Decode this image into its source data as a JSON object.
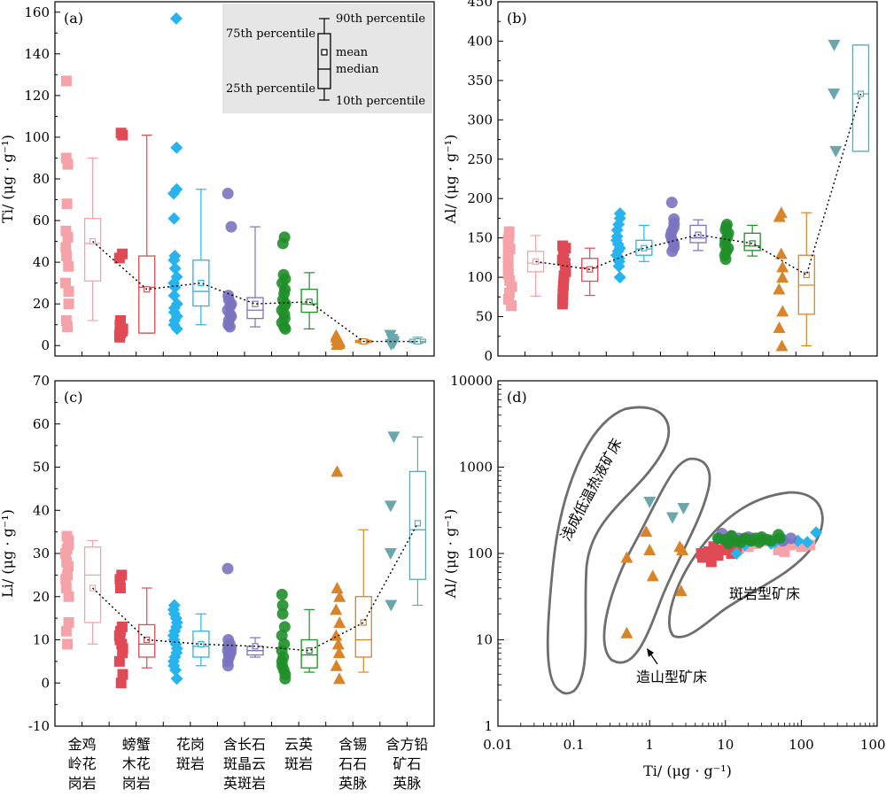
{
  "colors": {
    "jinji": "#f5a3a8",
    "pangxie": "#e04a55",
    "huagang": "#27b4ee",
    "hanchang": "#7a73c0",
    "yunying": "#1f8f28",
    "hanxi": "#d98428",
    "hanfang": "#6aa7ad",
    "legend_bg": "#e6e6e6",
    "field_line": "#6e6e6e"
  },
  "categories": [
    {
      "lines": [
        "金鸡",
        "岭花",
        "岗岩"
      ]
    },
    {
      "lines": [
        "螃蟹",
        "木花",
        "岗岩"
      ]
    },
    {
      "lines": [
        "花岗",
        "斑岩"
      ]
    },
    {
      "lines": [
        "含长石",
        "斑晶云",
        "英斑岩"
      ]
    },
    {
      "lines": [
        "云英",
        "斑岩"
      ]
    },
    {
      "lines": [
        "含锡",
        "石石",
        "英脉"
      ]
    },
    {
      "lines": [
        "含方铅",
        "矿石",
        "英脉"
      ]
    }
  ],
  "legend": {
    "p90": "90th percentile",
    "p75": "75th percentile",
    "mean": "mean",
    "median": "median",
    "p25": "25th percentile",
    "p10": "10th percentile"
  },
  "panels": {
    "a": {
      "label": "(a)",
      "ylabel": "Ti/ (μg · g⁻¹)"
    },
    "b": {
      "label": "(b)",
      "ylabel": "Al/ (μg · g⁻¹)"
    },
    "c": {
      "label": "(c)",
      "ylabel": "Li/ (μg · g⁻¹)"
    },
    "d": {
      "label": "(d)",
      "ylabel": "Al/ (μg · g⁻¹)",
      "xlabel": "Ti/ (μg · g⁻¹)",
      "field_epithermal": "浅成低温热液矿床",
      "field_orogenic": "造山型矿床",
      "field_porphyry": "斑岩型矿床"
    }
  },
  "chart_data": [
    {
      "panel": "a",
      "type": "box",
      "ylabel": "Ti/ (μg · g⁻¹)",
      "ylim": [
        -5,
        165
      ],
      "yticks": [
        0,
        20,
        40,
        60,
        80,
        100,
        120,
        140,
        160
      ],
      "series": [
        {
          "p10": 12,
          "p25": 31,
          "median": 49,
          "mean": 50,
          "p75": 61,
          "p90": 90,
          "points": [
            127,
            90,
            87,
            68,
            55,
            52,
            47,
            43,
            38,
            30,
            26,
            20,
            12,
            9
          ]
        },
        {
          "p10": 6,
          "p25": 6,
          "median": 28,
          "mean": 27,
          "p75": 43,
          "p90": 101,
          "points": [
            102,
            101,
            44,
            42,
            12,
            10,
            8,
            7,
            6,
            5,
            4
          ]
        },
        {
          "p10": 10,
          "p25": 19,
          "median": 26,
          "mean": 30,
          "p75": 41,
          "p90": 75,
          "points": [
            157,
            95,
            75,
            73,
            61,
            43,
            41,
            37,
            33,
            30,
            28,
            24,
            20,
            18,
            16,
            14,
            12,
            10,
            8
          ]
        },
        {
          "p10": 9,
          "p25": 13,
          "median": 17,
          "mean": 20,
          "p75": 23,
          "p90": 57,
          "points": [
            73,
            57,
            24,
            22,
            20,
            19,
            17,
            15,
            14,
            12,
            10,
            9
          ]
        },
        {
          "p10": 8,
          "p25": 16,
          "median": 20,
          "mean": 21,
          "p75": 27,
          "p90": 35,
          "points": [
            52,
            49,
            34,
            32,
            30,
            27,
            25,
            22,
            20,
            19,
            17,
            15,
            13,
            11,
            9,
            8
          ]
        },
        {
          "p10": 1,
          "p25": 1.5,
          "median": 2,
          "mean": 2,
          "p75": 2.5,
          "p90": 3,
          "points": [
            5,
            4,
            3,
            2.5,
            2,
            1,
            0.5
          ]
        },
        {
          "p10": 1,
          "p25": 1.5,
          "median": 2,
          "mean": 2,
          "p75": 3,
          "p90": 4,
          "points": [
            5,
            3,
            2,
            1,
            0.5
          ]
        }
      ]
    },
    {
      "panel": "b",
      "type": "box",
      "ylabel": "Al/ (μg · g⁻¹)",
      "ylim": [
        0,
        450
      ],
      "yticks": [
        0,
        50,
        100,
        150,
        200,
        250,
        300,
        350,
        400,
        450
      ],
      "series": [
        {
          "p10": 76,
          "p25": 107,
          "median": 118,
          "mean": 120,
          "p75": 133,
          "p90": 153,
          "points": [
            158,
            152,
            147,
            141,
            136,
            128,
            122,
            116,
            110,
            104,
            96,
            88,
            80,
            72,
            64
          ]
        },
        {
          "p10": 77,
          "p25": 95,
          "median": 112,
          "mean": 110,
          "p75": 124,
          "p90": 137,
          "points": [
            140,
            137,
            133,
            127,
            122,
            118,
            112,
            107,
            102,
            96,
            90,
            84,
            78,
            72,
            66
          ]
        },
        {
          "p10": 120,
          "p25": 128,
          "median": 136,
          "mean": 137,
          "p75": 147,
          "p90": 166,
          "points": [
            181,
            175,
            167,
            160,
            152,
            147,
            142,
            137,
            133,
            128,
            124,
            120,
            114,
            100
          ]
        },
        {
          "p10": 134,
          "p25": 144,
          "median": 150,
          "mean": 154,
          "p75": 166,
          "p90": 173,
          "points": [
            195,
            174,
            168,
            163,
            158,
            153,
            148,
            143,
            138,
            133
          ]
        },
        {
          "p10": 127,
          "p25": 134,
          "median": 140,
          "mean": 143,
          "p75": 156,
          "p90": 166,
          "points": [
            167,
            164,
            160,
            156,
            151,
            146,
            141,
            137,
            133,
            128,
            123
          ]
        },
        {
          "p10": 13,
          "p25": 53,
          "median": 90,
          "mean": 103,
          "p75": 128,
          "p90": 182,
          "points": [
            182,
            177,
            130,
            113,
            100,
            85,
            57,
            36,
            13
          ]
        },
        {
          "p10": 260,
          "p25": 260,
          "median": 333,
          "mean": 333,
          "p75": 395,
          "p90": 395,
          "points": [
            395,
            333,
            260
          ]
        }
      ]
    },
    {
      "panel": "c",
      "type": "box",
      "ylabel": "Li/ (μg · g⁻¹)",
      "ylim": [
        -10,
        70
      ],
      "yticks": [
        -10,
        0,
        10,
        20,
        30,
        40,
        50,
        60,
        70
      ],
      "series": [
        {
          "p10": 9,
          "p25": 14,
          "median": 25,
          "mean": 22,
          "p75": 31.5,
          "p90": 33,
          "points": [
            34,
            33,
            32,
            31,
            30,
            28,
            27,
            25,
            24,
            22,
            20,
            14,
            12,
            9
          ]
        },
        {
          "p10": 3.5,
          "p25": 6,
          "median": 9,
          "mean": 10,
          "p75": 13.5,
          "p90": 22,
          "points": [
            25,
            24,
            22,
            13,
            12,
            11,
            10,
            9,
            8,
            7,
            5,
            2,
            0
          ]
        },
        {
          "p10": 4,
          "p25": 6,
          "median": 8.5,
          "mean": 9,
          "p75": 12,
          "p90": 16,
          "points": [
            18,
            17,
            16,
            15,
            14,
            13,
            12,
            11,
            10,
            9,
            8,
            7,
            6,
            5,
            4,
            3,
            1
          ]
        },
        {
          "p10": 6,
          "p25": 6.5,
          "median": 7.5,
          "mean": 8.5,
          "p75": 8.5,
          "p90": 10.5,
          "points": [
            26.5,
            10,
            9,
            8.5,
            8,
            7.5,
            7,
            6.5,
            6,
            5,
            4
          ]
        },
        {
          "p10": 2.5,
          "p25": 3.5,
          "median": 6.5,
          "mean": 7.5,
          "p75": 10,
          "p90": 17,
          "points": [
            20.5,
            18,
            16,
            13,
            11,
            9,
            7.5,
            6,
            5,
            4,
            3,
            2,
            1
          ]
        },
        {
          "p10": 2.5,
          "p25": 6,
          "median": 10,
          "mean": 14,
          "p75": 20,
          "p90": 35.5,
          "points": [
            49,
            22,
            20,
            17,
            14,
            11,
            9,
            7,
            4,
            1
          ]
        },
        {
          "p10": 18,
          "p25": 24,
          "median": 35.5,
          "mean": 37,
          "p75": 49,
          "p90": 57,
          "points": [
            57,
            41,
            30,
            18
          ]
        }
      ]
    },
    {
      "panel": "d",
      "type": "scatter",
      "xscale": "log",
      "yscale": "log",
      "xlabel": "Ti/ (μg · g⁻¹)",
      "ylabel": "Al/ (μg · g⁻¹)",
      "xlim": [
        0.01,
        1000
      ],
      "ylim": [
        1,
        10000
      ],
      "xticks": [
        0.01,
        0.1,
        1,
        10,
        100,
        1000
      ],
      "yticks": [
        1,
        10,
        100,
        1000,
        10000
      ],
      "series": [
        {
          "points": [
            [
              13,
              135
            ],
            [
              20,
              120
            ],
            [
              30,
              140
            ],
            [
              50,
              110
            ],
            [
              70,
              125
            ],
            [
              90,
              130
            ],
            [
              130,
              125
            ],
            [
              40,
              145
            ],
            [
              60,
              105
            ],
            [
              100,
              120
            ],
            [
              15,
              115
            ],
            [
              25,
              130
            ]
          ]
        },
        {
          "points": [
            [
              5,
              90
            ],
            [
              6,
              105
            ],
            [
              7,
              120
            ],
            [
              8,
              95
            ],
            [
              9,
              110
            ],
            [
              10,
              130
            ],
            [
              12,
              100
            ],
            [
              14,
              115
            ],
            [
              6.5,
              80
            ],
            [
              11,
              125
            ],
            [
              4.8,
              100
            ]
          ]
        },
        {
          "points": [
            [
              8,
              150
            ],
            [
              12,
              155
            ],
            [
              16,
              145
            ],
            [
              22,
              140
            ],
            [
              30,
              150
            ],
            [
              45,
              135
            ],
            [
              60,
              145
            ],
            [
              90,
              140
            ],
            [
              120,
              135
            ],
            [
              157,
              175
            ],
            [
              18,
              125
            ],
            [
              40,
              130
            ],
            [
              14,
              100
            ]
          ]
        },
        {
          "points": [
            [
              9,
              170
            ],
            [
              12,
              160
            ],
            [
              15,
              150
            ],
            [
              18,
              145
            ],
            [
              20,
              155
            ],
            [
              22,
              150
            ],
            [
              30,
              145
            ],
            [
              57,
              140
            ],
            [
              73,
              150
            ]
          ]
        },
        {
          "points": [
            [
              8,
              150
            ],
            [
              10,
              145
            ],
            [
              12,
              160
            ],
            [
              14,
              140
            ],
            [
              16,
              135
            ],
            [
              18,
              150
            ],
            [
              20,
              145
            ],
            [
              22,
              140
            ],
            [
              25,
              150
            ],
            [
              28,
              135
            ],
            [
              30,
              155
            ],
            [
              35,
              145
            ],
            [
              50,
              165
            ],
            [
              52,
              150
            ],
            [
              11,
              130
            ],
            [
              40,
              140
            ]
          ]
        },
        {
          "points": [
            [
              0.5,
              12
            ],
            [
              0.5,
              90
            ],
            [
              0.9,
              180
            ],
            [
              1,
              110
            ],
            [
              1.1,
              55
            ],
            [
              2.5,
              120
            ],
            [
              2.7,
              110
            ],
            [
              2.6,
              37
            ]
          ]
        },
        {
          "points": [
            [
              1,
              395
            ],
            [
              2,
              260
            ],
            [
              2.8,
              333
            ]
          ]
        }
      ]
    }
  ]
}
